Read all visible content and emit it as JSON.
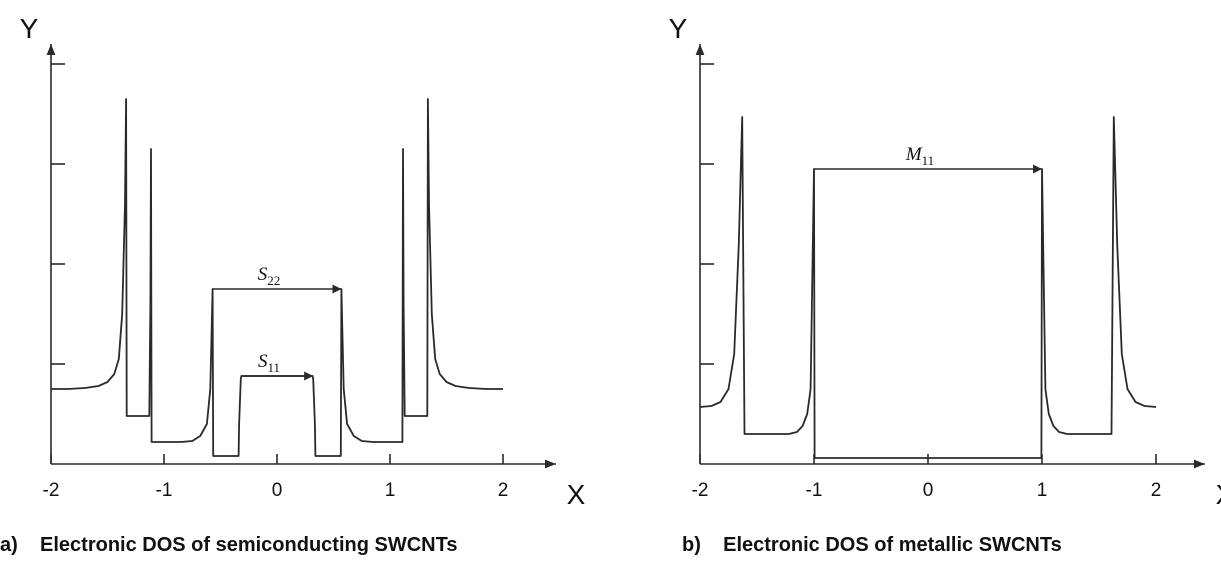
{
  "chart_data": [
    {
      "type": "line",
      "title": "Electronic DOS of semiconducting SWCNTs",
      "caption": "a)    Electronic DOS of semiconducting SWCNTs",
      "xlabel": "X",
      "ylabel": "Y",
      "xlim": [
        -2,
        2
      ],
      "ylim": [
        0,
        4
      ],
      "xticks": [
        "-2",
        "-1",
        "0",
        "1",
        "2"
      ],
      "yticks": [
        1,
        2,
        3,
        4
      ],
      "grid": false,
      "series": [
        {
          "values": [
            [
              -2.0,
              0.75
            ],
            [
              -1.85,
              0.75
            ],
            [
              -1.7,
              0.76
            ],
            [
              -1.58,
              0.78
            ],
            [
              -1.5,
              0.82
            ],
            [
              -1.44,
              0.9
            ],
            [
              -1.4,
              1.05
            ],
            [
              -1.37,
              1.5
            ],
            [
              -1.345,
              2.6
            ],
            [
              -1.335,
              3.65
            ],
            [
              -1.33,
              0.48
            ],
            [
              -1.13,
              0.48
            ],
            [
              -1.12,
              1.6
            ],
            [
              -1.115,
              3.15
            ],
            [
              -1.11,
              0.22
            ],
            [
              -0.85,
              0.22
            ],
            [
              -0.75,
              0.23
            ],
            [
              -0.68,
              0.28
            ],
            [
              -0.62,
              0.4
            ],
            [
              -0.59,
              0.75
            ],
            [
              -0.57,
              1.75
            ],
            [
              -0.565,
              0.08
            ],
            [
              -0.34,
              0.08
            ],
            [
              -0.335,
              0.4
            ],
            [
              -0.32,
              0.85
            ],
            [
              -0.315,
              0.88
            ],
            [
              0.315,
              0.88
            ],
            [
              0.32,
              0.85
            ],
            [
              0.335,
              0.4
            ],
            [
              0.34,
              0.08
            ],
            [
              0.565,
              0.08
            ],
            [
              0.57,
              1.75
            ],
            [
              0.59,
              0.75
            ],
            [
              0.62,
              0.4
            ],
            [
              0.68,
              0.28
            ],
            [
              0.75,
              0.23
            ],
            [
              0.85,
              0.22
            ],
            [
              1.11,
              0.22
            ],
            [
              1.115,
              3.15
            ],
            [
              1.12,
              1.6
            ],
            [
              1.13,
              0.48
            ],
            [
              1.33,
              0.48
            ],
            [
              1.335,
              3.65
            ],
            [
              1.345,
              2.6
            ],
            [
              1.37,
              1.5
            ],
            [
              1.4,
              1.05
            ],
            [
              1.44,
              0.9
            ],
            [
              1.5,
              0.82
            ],
            [
              1.58,
              0.78
            ],
            [
              1.7,
              0.76
            ],
            [
              1.85,
              0.75
            ],
            [
              2.0,
              0.75
            ]
          ]
        }
      ],
      "annotations": [
        {
          "label": "S",
          "sub": "22",
          "x_from": -0.57,
          "x_to": 0.57,
          "y": 1.75
        },
        {
          "label": "S",
          "sub": "11",
          "x_from": -0.32,
          "x_to": 0.32,
          "y": 0.88
        }
      ]
    },
    {
      "type": "line",
      "title": "Electronic DOS of metallic SWCNTs",
      "caption": "b)    Electronic DOS of metallic SWCNTs",
      "xlabel": "X",
      "ylabel": "Y",
      "xlim": [
        -2,
        2
      ],
      "ylim": [
        0,
        4
      ],
      "xticks": [
        "-2",
        "-1",
        "0",
        "1",
        "2"
      ],
      "yticks": [
        1,
        2,
        3,
        4
      ],
      "grid": false,
      "series": [
        {
          "values": [
            [
              -2.0,
              0.57
            ],
            [
              -1.9,
              0.58
            ],
            [
              -1.82,
              0.62
            ],
            [
              -1.75,
              0.75
            ],
            [
              -1.7,
              1.1
            ],
            [
              -1.66,
              2.2
            ],
            [
              -1.63,
              3.47
            ],
            [
              -1.61,
              0.3
            ],
            [
              -1.22,
              0.3
            ],
            [
              -1.15,
              0.32
            ],
            [
              -1.1,
              0.38
            ],
            [
              -1.06,
              0.5
            ],
            [
              -1.03,
              0.75
            ],
            [
              -1.0,
              2.95
            ],
            [
              -0.995,
              0.06
            ],
            [
              0.995,
              0.06
            ],
            [
              1.0,
              2.95
            ],
            [
              1.03,
              0.75
            ],
            [
              1.06,
              0.5
            ],
            [
              1.1,
              0.38
            ],
            [
              1.15,
              0.32
            ],
            [
              1.22,
              0.3
            ],
            [
              1.61,
              0.3
            ],
            [
              1.63,
              3.47
            ],
            [
              1.66,
              2.2
            ],
            [
              1.7,
              1.1
            ],
            [
              1.75,
              0.75
            ],
            [
              1.82,
              0.62
            ],
            [
              1.9,
              0.58
            ],
            [
              2.0,
              0.57
            ]
          ]
        }
      ],
      "annotations": [
        {
          "label": "M",
          "sub": "11",
          "x_from": -1.0,
          "x_to": 1.0,
          "y": 2.95
        }
      ]
    }
  ]
}
